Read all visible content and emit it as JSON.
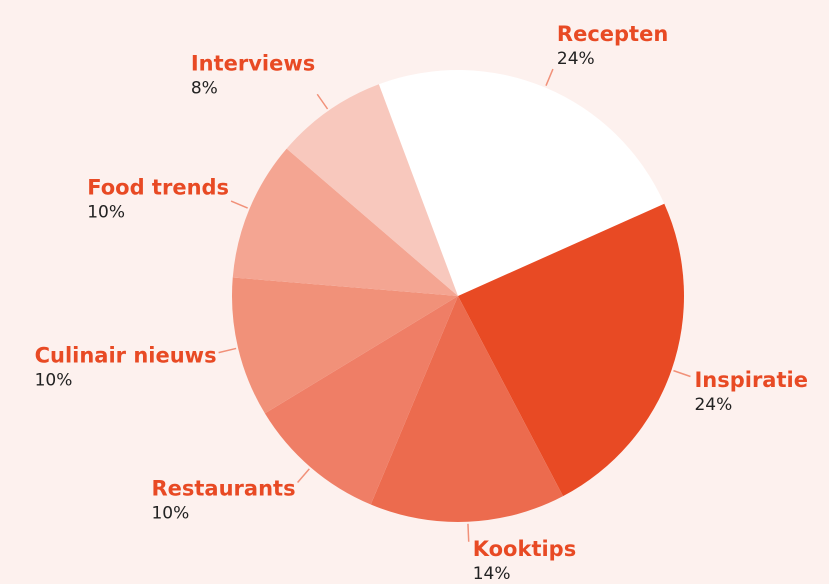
{
  "chart_data": {
    "type": "pie",
    "categories": [
      "Recepten",
      "Inspiratie",
      "Kooktips",
      "Restaurants",
      "Culinair nieuws",
      "Food trends",
      "Interviews"
    ],
    "values": [
      24,
      24,
      14,
      10,
      10,
      10,
      8
    ],
    "value_labels": [
      "24%",
      "24%",
      "14%",
      "10%",
      "10%",
      "10%",
      "8%"
    ],
    "colors": [
      "#ffffff",
      "#e84a24",
      "#ec6b4e",
      "#ef7e66",
      "#f19179",
      "#f4a592",
      "#f8c8bd"
    ]
  }
}
